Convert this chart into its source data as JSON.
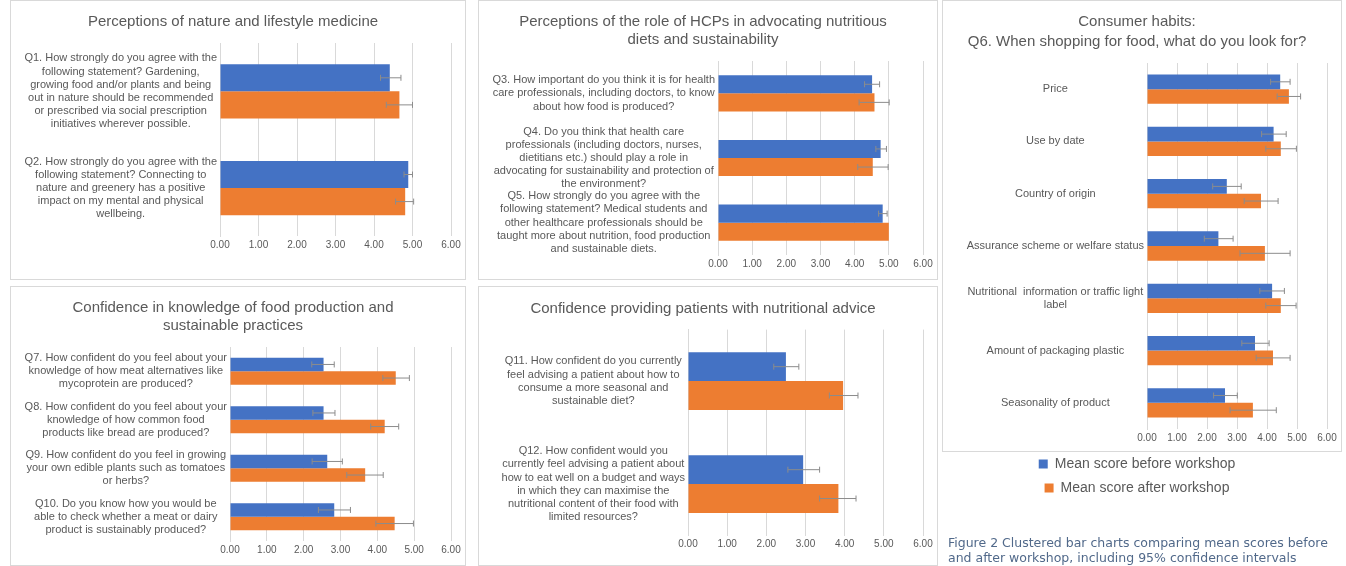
{
  "chart_data": [
    {
      "type": "bar",
      "orientation": "horizontal",
      "title": "Perceptions of nature and lifestyle medicine",
      "categories": [
        "Q1. How strongly do you agree with the following statement? Gardening, growing food and/or plants and being out in nature should be recommended or prescribed via social prescription initiatives wherever possible.",
        "Q2. How strongly do you agree with the following statement? Connecting to nature and greenery has a positive impact on my mental and physical wellbeing."
      ],
      "series": [
        {
          "color": "#4472c4",
          "values": [
            4.41,
            4.89
          ],
          "errors": [
            [
              4.17,
              4.7
            ],
            [
              4.78,
              5.0
            ]
          ]
        },
        {
          "color": "#ed7d31",
          "values": [
            4.66,
            4.81
          ],
          "errors": [
            [
              4.32,
              5.0
            ],
            [
              4.56,
              5.03
            ]
          ]
        }
      ],
      "xlim": [
        0,
        6
      ],
      "xticks": [
        {
          "value": 0,
          "label": "0.00"
        },
        {
          "value": 1,
          "label": "1.00"
        },
        {
          "value": 2,
          "label": "2.00"
        },
        {
          "value": 3,
          "label": "3.00"
        },
        {
          "value": 4,
          "label": "4.00"
        },
        {
          "value": 5,
          "label": "5.00"
        },
        {
          "value": 6,
          "label": "6.00"
        }
      ],
      "grid": "x"
    },
    {
      "type": "bar",
      "orientation": "horizontal",
      "title": "Perceptions of the role of HCPs in advocating nutritious diets and sustainability",
      "categories": [
        "Q3. How important do you think it is for health care professionals, including doctors, to know about how food is produced?",
        "Q4. Do you think that health care professionals (including doctors, nurses, dietitians etc.) should play a role in advocating for sustainability and protection of the environment?",
        "Q5. How strongly do you agree with the following statement? Medical students and other healthcare professionals should be taught more about nutrition, food production and sustainable diets."
      ],
      "series": [
        {
          "color": "#4472c4",
          "values": [
            4.51,
            4.76,
            4.82
          ],
          "errors": [
            [
              4.29,
              4.73
            ],
            [
              4.62,
              4.93
            ],
            [
              4.7,
              4.95
            ]
          ]
        },
        {
          "color": "#ed7d31",
          "values": [
            4.58,
            4.53,
            5.0
          ],
          "errors": [
            [
              4.13,
              5.01
            ],
            [
              4.09,
              4.98
            ],
            null
          ]
        }
      ],
      "xlim": [
        0,
        6
      ],
      "xticks": [
        {
          "value": 0,
          "label": "0.00"
        },
        {
          "value": 1,
          "label": "1.00"
        },
        {
          "value": 2,
          "label": "2.00"
        },
        {
          "value": 3,
          "label": "3.00"
        },
        {
          "value": 4,
          "label": "4.00"
        },
        {
          "value": 5,
          "label": "5.00"
        },
        {
          "value": 6,
          "label": "6.00"
        }
      ],
      "grid": "x"
    },
    {
      "type": "bar",
      "orientation": "horizontal",
      "title": "Consumer habits:",
      "subtitle": "Q6. When shopping for food, what do you look for?",
      "categories": [
        "Price",
        "Use by date",
        "Country of origin",
        "Assurance scheme or welfare status",
        "Nutritional  information or traffic light label",
        "Amount of packaging plastic",
        "Seasonality of product"
      ],
      "series": [
        {
          "name": "Mean score before workshop",
          "color": "#4472c4",
          "values": [
            4.44,
            4.22,
            2.66,
            2.38,
            4.17,
            3.6,
            2.6
          ],
          "errors": [
            [
              4.12,
              4.77
            ],
            [
              3.82,
              4.64
            ],
            [
              2.19,
              3.14
            ],
            [
              1.91,
              2.87
            ],
            [
              3.76,
              4.58
            ],
            [
              3.16,
              4.07
            ],
            [
              2.22,
              3.01
            ]
          ]
        },
        {
          "name": "Mean score after workshop",
          "color": "#ed7d31",
          "values": [
            4.73,
            4.46,
            3.8,
            3.93,
            4.46,
            4.2,
            3.53
          ],
          "errors": [
            [
              4.34,
              5.12
            ],
            [
              3.96,
              4.98
            ],
            [
              3.24,
              4.37
            ],
            [
              3.1,
              4.77
            ],
            [
              3.96,
              4.97
            ],
            [
              3.64,
              4.77
            ],
            [
              2.77,
              4.31
            ]
          ]
        }
      ],
      "xlim": [
        0,
        6
      ],
      "xticks": [
        {
          "value": 0,
          "label": "0.00"
        },
        {
          "value": 1,
          "label": "1.00"
        },
        {
          "value": 2,
          "label": "2.00"
        },
        {
          "value": 3,
          "label": "3.00"
        },
        {
          "value": 4,
          "label": "4.00"
        },
        {
          "value": 5,
          "label": "5.00"
        },
        {
          "value": 6,
          "label": "6.00"
        }
      ],
      "grid": "x",
      "legend": "bottom",
      "annotations": [
        "Figure 2 Clustered bar charts comparing mean scores before and after workshop, including 95% confidence intervals"
      ]
    },
    {
      "type": "bar",
      "orientation": "horizontal",
      "title": "Confidence in knowledge of food production and sustainable practices",
      "categories": [
        "Q7. How confident do you feel about your knowledge of how meat alternatives like mycoprotein are produced?",
        "Q8. How confident do you feel about your knowledge of how common food products like bread are produced?",
        "Q9. How confident do you feel in growing your own edible plants such as tomatoes or herbs?",
        "Q10. Do you know how you would be able to check whether a meat or dairy product is sustainably produced?"
      ],
      "series": [
        {
          "color": "#4472c4",
          "values": [
            2.54,
            2.54,
            2.64,
            2.83
          ],
          "errors": [
            [
              2.22,
              2.83
            ],
            [
              2.25,
              2.85
            ],
            [
              2.23,
              3.05
            ],
            [
              2.4,
              3.27
            ]
          ]
        },
        {
          "color": "#ed7d31",
          "values": [
            4.5,
            4.2,
            3.67,
            4.47
          ],
          "errors": [
            [
              4.15,
              4.87
            ],
            [
              3.82,
              4.58
            ],
            [
              3.17,
              4.16
            ],
            [
              3.96,
              4.98
            ]
          ]
        }
      ],
      "xlim": [
        0,
        6
      ],
      "xticks": [
        {
          "value": 0,
          "label": "0.00"
        },
        {
          "value": 1,
          "label": "1.00"
        },
        {
          "value": 2,
          "label": "2.00"
        },
        {
          "value": 3,
          "label": "3.00"
        },
        {
          "value": 4,
          "label": "4.00"
        },
        {
          "value": 5,
          "label": "5.00"
        },
        {
          "value": 6,
          "label": "6.00"
        }
      ],
      "grid": "x"
    },
    {
      "type": "bar",
      "orientation": "horizontal",
      "title": "Confidence providing patients with nutritional advice",
      "categories": [
        "Q11. How confident do you currently feel advising a patient about how to consume a more seasonal and sustainable diet?",
        "Q12. How confident would you currently feel advising a patient about how to eat well on a budget and ways in which they can maximise the nutritional content of their food with limited resources?"
      ],
      "series": [
        {
          "color": "#4472c4",
          "values": [
            2.5,
            2.94
          ],
          "errors": [
            [
              2.19,
              2.83
            ],
            [
              2.55,
              3.36
            ]
          ]
        },
        {
          "color": "#ed7d31",
          "values": [
            3.96,
            3.84
          ],
          "errors": [
            [
              3.61,
              4.34
            ],
            [
              3.36,
              4.29
            ]
          ]
        }
      ],
      "xlim": [
        0,
        6
      ],
      "xticks": [
        {
          "value": 0,
          "label": "0.00"
        },
        {
          "value": 1,
          "label": "1.00"
        },
        {
          "value": 2,
          "label": "2.00"
        },
        {
          "value": 3,
          "label": "3.00"
        },
        {
          "value": 4,
          "label": "4.00"
        },
        {
          "value": 5,
          "label": "5.00"
        },
        {
          "value": 6,
          "label": "6.00"
        }
      ],
      "grid": "x"
    }
  ]
}
